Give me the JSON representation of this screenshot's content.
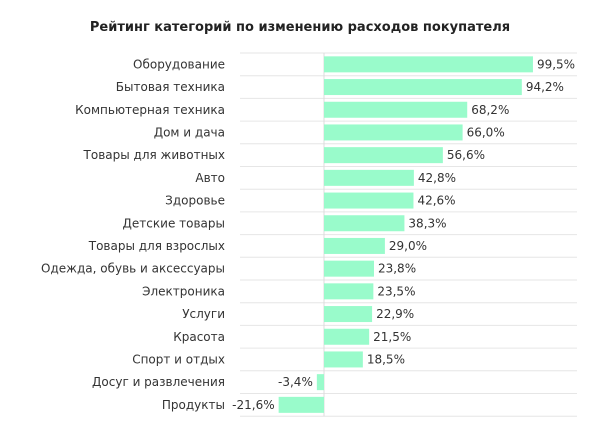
{
  "chart_data": {
    "type": "bar",
    "orientation": "horizontal",
    "title": "Рейтинг категорий по изменению расходов покупателя",
    "categories": [
      "Оборудование",
      "Бытовая техника",
      "Компьютерная техника",
      "Дом и дача",
      "Товары для животных",
      "Авто",
      "Здоровье",
      "Детские товары",
      "Товары для взрослых",
      "Одежда, обувь и аксессуары",
      "Электроника",
      "Услуги",
      "Красота",
      "Спорт и отдых",
      "Досуг и развлечения",
      "Продукты"
    ],
    "values": [
      99.5,
      94.2,
      68.2,
      66.0,
      56.6,
      42.8,
      42.6,
      38.3,
      29.0,
      23.8,
      23.5,
      22.9,
      21.5,
      18.5,
      -3.4,
      -21.6
    ],
    "value_labels": [
      "99,5%",
      "94,2%",
      "68,2%",
      "66,0%",
      "56,6%",
      "42,8%",
      "42,6%",
      "38,3%",
      "29,0%",
      "23,8%",
      "23,5%",
      "22,9%",
      "21,5%",
      "18,5%",
      "-3,4%",
      "-21,6%"
    ],
    "unit": "%",
    "xlim": [
      -40,
      120
    ],
    "grid": "horizontal row separators",
    "bar_color": "#99fbcb"
  }
}
